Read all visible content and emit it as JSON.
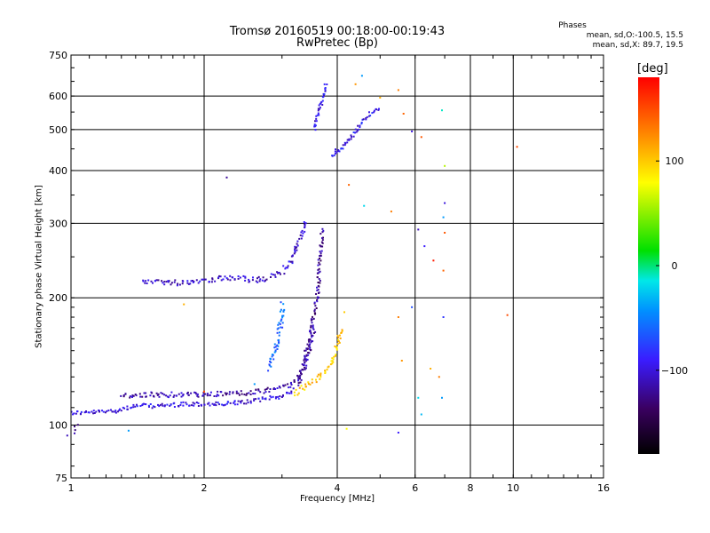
{
  "header": {
    "title_line1": "Tromsø 20160519 00:18:00-00:19:43",
    "title_line2": "RwPretec (Bp)",
    "phases_title": "Phases",
    "phases_o": "mean, sd,O:-100.5, 15.5",
    "phases_x": "mean, sd,X:  89.7, 19.5"
  },
  "colorbar": {
    "unit": "[deg]",
    "range": [
      -180,
      180
    ],
    "ticks": [
      100,
      0,
      -100
    ],
    "tick_labels": [
      "100",
      "0",
      "−100"
    ]
  },
  "chart_data": {
    "type": "scatter",
    "xlabel": "Frequency [MHz]",
    "ylabel": "Stationary phase Virtual Height [km]",
    "x_scale": "log",
    "y_scale": "log",
    "xlim": [
      1,
      16
    ],
    "ylim": [
      75,
      750
    ],
    "grid": true,
    "x_ticks": [
      1,
      2,
      4,
      6,
      8,
      10,
      16
    ],
    "x_tick_labels": [
      "1",
      "2",
      "4",
      "6",
      "8",
      "10",
      "16"
    ],
    "x_grid": [
      2,
      4,
      6,
      8,
      10
    ],
    "y_ticks": [
      75,
      100,
      200,
      300,
      400,
      500,
      600,
      750
    ],
    "y_tick_labels": [
      "75",
      "100",
      "200",
      "300",
      "400",
      "500",
      "600",
      "750"
    ],
    "y_grid": [
      100,
      200,
      300,
      400,
      500,
      600
    ],
    "series": [
      {
        "mode": "O",
        "traces": [
          {
            "phase": -100,
            "spread": 0.6,
            "points": [
              [
                1.0,
                107
              ],
              [
                1.1,
                107
              ],
              [
                1.25,
                108
              ],
              [
                1.4,
                111
              ],
              [
                1.6,
                111
              ],
              [
                1.8,
                112
              ],
              [
                2.0,
                112
              ],
              [
                2.2,
                112
              ],
              [
                2.4,
                113
              ],
              [
                2.6,
                114
              ],
              [
                2.8,
                116
              ],
              [
                3.0,
                117
              ],
              [
                3.1,
                119
              ],
              [
                3.2,
                122
              ]
            ]
          },
          {
            "phase": -110,
            "spread": 1.5,
            "points": [
              [
                1.0,
                97
              ],
              [
                1.03,
                99
              ]
            ]
          },
          {
            "phase": -115,
            "spread": 0.7,
            "points": [
              [
                1.3,
                117
              ],
              [
                1.5,
                118
              ],
              [
                1.7,
                118
              ],
              [
                1.9,
                118
              ],
              [
                2.1,
                118
              ],
              [
                2.3,
                119
              ],
              [
                2.5,
                119
              ],
              [
                2.7,
                120
              ],
              [
                2.9,
                122
              ],
              [
                3.1,
                124
              ],
              [
                3.25,
                128
              ],
              [
                3.35,
                135
              ],
              [
                3.45,
                150
              ],
              [
                3.5,
                160
              ],
              [
                3.55,
                170
              ]
            ]
          },
          {
            "phase": -105,
            "spread": 0.8,
            "points": [
              [
                1.45,
                220
              ],
              [
                1.6,
                218
              ],
              [
                1.75,
                217
              ],
              [
                1.9,
                219
              ],
              [
                2.05,
                221
              ],
              [
                2.2,
                222
              ],
              [
                2.4,
                222
              ],
              [
                2.6,
                220
              ],
              [
                2.8,
                222
              ],
              [
                3.0,
                230
              ],
              [
                3.15,
                245
              ],
              [
                3.25,
                265
              ],
              [
                3.35,
                290
              ],
              [
                3.38,
                305
              ]
            ]
          },
          {
            "phase": -120,
            "spread": 0.6,
            "points": [
              [
                3.28,
                125
              ],
              [
                3.32,
                135
              ],
              [
                3.38,
                145
              ],
              [
                3.45,
                155
              ],
              [
                3.5,
                170
              ],
              [
                3.55,
                185
              ],
              [
                3.6,
                200
              ],
              [
                3.63,
                220
              ],
              [
                3.65,
                245
              ],
              [
                3.68,
                270
              ],
              [
                3.7,
                290
              ]
            ]
          },
          {
            "phase": -95,
            "spread": 0.5,
            "points": [
              [
                3.55,
                500
              ],
              [
                3.6,
                530
              ],
              [
                3.65,
                560
              ],
              [
                3.7,
                590
              ],
              [
                3.75,
                620
              ],
              [
                3.78,
                645
              ]
            ]
          },
          {
            "phase": -95,
            "spread": 0.5,
            "points": [
              [
                3.9,
                430
              ],
              [
                4.0,
                450
              ],
              [
                4.05,
                445
              ],
              [
                4.3,
                480
              ],
              [
                4.5,
                510
              ],
              [
                4.7,
                540
              ],
              [
                4.9,
                560
              ],
              [
                5.0,
                560
              ]
            ]
          },
          {
            "phase": -60,
            "spread": 0.9,
            "points": [
              [
                2.8,
                135
              ],
              [
                2.9,
                150
              ],
              [
                2.95,
                165
              ],
              [
                3.0,
                180
              ],
              [
                3.02,
                195
              ]
            ]
          }
        ]
      },
      {
        "mode": "X",
        "traces": [
          {
            "phase": 100,
            "spread": 0.7,
            "points": [
              [
                3.2,
                118
              ],
              [
                3.3,
                121
              ],
              [
                3.4,
                124
              ],
              [
                3.5,
                126
              ],
              [
                3.6,
                129
              ],
              [
                3.7,
                132
              ],
              [
                3.8,
                136
              ],
              [
                3.9,
                141
              ],
              [
                3.95,
                148
              ],
              [
                4.0,
                155
              ],
              [
                4.05,
                162
              ],
              [
                4.1,
                170
              ]
            ]
          }
        ]
      }
    ],
    "scattered_points": [
      {
        "x": 4.55,
        "y": 670,
        "phase": -40
      },
      {
        "x": 4.4,
        "y": 640,
        "phase": 120
      },
      {
        "x": 5.0,
        "y": 595,
        "phase": 110
      },
      {
        "x": 5.5,
        "y": 620,
        "phase": 130
      },
      {
        "x": 5.65,
        "y": 545,
        "phase": 140
      },
      {
        "x": 5.9,
        "y": 495,
        "phase": -100
      },
      {
        "x": 6.2,
        "y": 480,
        "phase": 145
      },
      {
        "x": 6.9,
        "y": 555,
        "phase": -10
      },
      {
        "x": 7.0,
        "y": 410,
        "phase": 60
      },
      {
        "x": 10.2,
        "y": 455,
        "phase": 150
      },
      {
        "x": 4.25,
        "y": 370,
        "phase": 140
      },
      {
        "x": 4.6,
        "y": 330,
        "phase": -20
      },
      {
        "x": 5.3,
        "y": 320,
        "phase": 130
      },
      {
        "x": 6.1,
        "y": 290,
        "phase": -110
      },
      {
        "x": 6.3,
        "y": 265,
        "phase": -90
      },
      {
        "x": 7.0,
        "y": 335,
        "phase": -100
      },
      {
        "x": 6.95,
        "y": 310,
        "phase": -40
      },
      {
        "x": 7.0,
        "y": 285,
        "phase": 145
      },
      {
        "x": 6.6,
        "y": 245,
        "phase": 170
      },
      {
        "x": 6.95,
        "y": 232,
        "phase": 140
      },
      {
        "x": 2.25,
        "y": 385,
        "phase": -120
      },
      {
        "x": 1.8,
        "y": 193,
        "phase": 110
      },
      {
        "x": 5.5,
        "y": 180,
        "phase": 130
      },
      {
        "x": 5.9,
        "y": 190,
        "phase": -70
      },
      {
        "x": 6.95,
        "y": 180,
        "phase": -80
      },
      {
        "x": 9.7,
        "y": 182,
        "phase": 150
      },
      {
        "x": 4.15,
        "y": 185,
        "phase": 100
      },
      {
        "x": 5.6,
        "y": 142,
        "phase": 120
      },
      {
        "x": 6.5,
        "y": 136,
        "phase": 110
      },
      {
        "x": 6.8,
        "y": 130,
        "phase": 130
      },
      {
        "x": 6.1,
        "y": 116,
        "phase": -20
      },
      {
        "x": 6.9,
        "y": 116,
        "phase": -40
      },
      {
        "x": 6.2,
        "y": 106,
        "phase": -30
      },
      {
        "x": 5.5,
        "y": 96,
        "phase": -90
      },
      {
        "x": 4.2,
        "y": 98,
        "phase": 80
      },
      {
        "x": 1.35,
        "y": 97,
        "phase": -40
      },
      {
        "x": 2.6,
        "y": 125,
        "phase": -40
      },
      {
        "x": 2.0,
        "y": 120,
        "phase": 150
      }
    ]
  }
}
